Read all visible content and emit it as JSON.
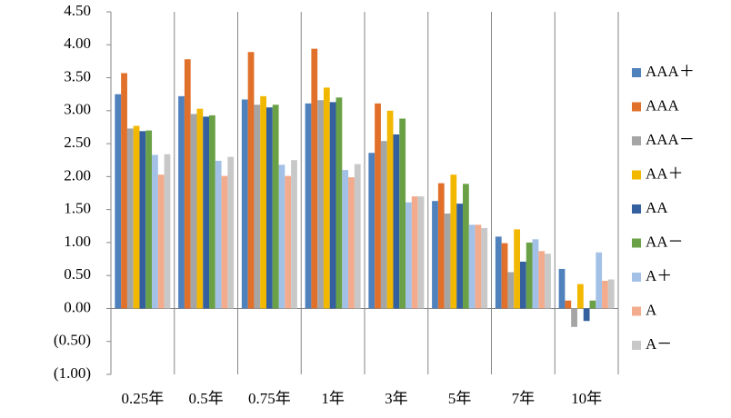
{
  "chart_data": {
    "type": "bar",
    "categories": [
      "0.25年",
      "0.5年",
      "0.75年",
      "1年",
      "3年",
      "5年",
      "7年",
      "10年"
    ],
    "series": [
      {
        "name": "AAA＋",
        "color": "#4f81bd",
        "values": [
          3.25,
          3.22,
          3.17,
          3.11,
          2.36,
          1.63,
          1.09,
          0.6
        ]
      },
      {
        "name": "AAA",
        "color": "#e0702a",
        "values": [
          3.57,
          3.78,
          3.89,
          3.94,
          3.11,
          1.9,
          0.99,
          0.12
        ]
      },
      {
        "name": "AAA－",
        "color": "#a5a5a5",
        "values": [
          2.73,
          2.95,
          3.09,
          3.16,
          2.54,
          1.44,
          0.55,
          -0.28
        ]
      },
      {
        "name": "AA＋",
        "color": "#f2b800",
        "values": [
          2.77,
          3.03,
          3.22,
          3.35,
          3.0,
          2.03,
          1.2,
          0.37
        ]
      },
      {
        "name": "AA",
        "color": "#35609f",
        "values": [
          2.69,
          2.91,
          3.05,
          3.13,
          2.64,
          1.59,
          0.71,
          -0.19
        ]
      },
      {
        "name": "AA－",
        "color": "#6aa147",
        "values": [
          2.7,
          2.93,
          3.09,
          3.2,
          2.88,
          1.89,
          1.0,
          0.12
        ]
      },
      {
        "name": "A＋",
        "color": "#a3c1e6",
        "values": [
          2.33,
          2.24,
          2.18,
          2.1,
          1.61,
          1.27,
          1.05,
          0.85
        ]
      },
      {
        "name": "A",
        "color": "#f2ab8c",
        "values": [
          2.03,
          2.01,
          2.01,
          1.99,
          1.7,
          1.27,
          0.87,
          0.42
        ]
      },
      {
        "name": "A－",
        "color": "#c8c8c8",
        "values": [
          2.34,
          2.3,
          2.25,
          2.19,
          1.7,
          1.22,
          0.83,
          0.44
        ]
      }
    ],
    "ylim": [
      -1,
      4.5
    ],
    "yticks": [
      {
        "value": -1,
        "label": "(1.00)"
      },
      {
        "value": -0.5,
        "label": "(0.50)"
      },
      {
        "value": 0,
        "label": "0.00"
      },
      {
        "value": 0.5,
        "label": "0.50"
      },
      {
        "value": 1,
        "label": "1.00"
      },
      {
        "value": 1.5,
        "label": "1.50"
      },
      {
        "value": 2,
        "label": "2.00"
      },
      {
        "value": 2.5,
        "label": "2.50"
      },
      {
        "value": 3,
        "label": "3.00"
      },
      {
        "value": 3.5,
        "label": "3.50"
      },
      {
        "value": 4,
        "label": "4.00"
      },
      {
        "value": 4.5,
        "label": "4.50"
      }
    ],
    "negative_tick_color": "#ff0000",
    "legend": "right"
  }
}
